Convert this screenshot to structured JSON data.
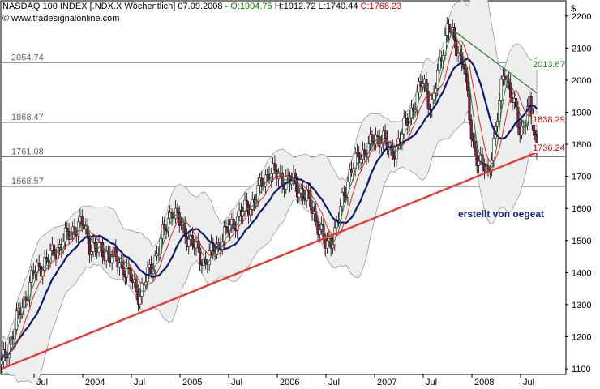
{
  "header": {
    "instrument": "NASDAQ 100 INDEX [.NDX.X  Wöchentlich]",
    "date": "07.09.2008",
    "open": "O:1904.75",
    "high": "H:1912.72",
    "low": "L:1740.44",
    "close": "C:1768.23"
  },
  "website": "© www.tradesignalonline.com",
  "credit": "erstellt von oegeat",
  "chart_data": {
    "type": "candlestick",
    "currency_symbol": "$",
    "ylim": [
      1085,
      2245
    ],
    "y_ticks": [
      1100,
      1200,
      1300,
      1400,
      1500,
      1600,
      1700,
      1800,
      1900,
      2000,
      2100,
      2200
    ],
    "x_ticks": [
      "Jul",
      "2004",
      "Jul",
      "2005",
      "Jul",
      "2006",
      "Jul",
      "2007",
      "Jul",
      "2008",
      "Jul"
    ],
    "horizontal_levels": [
      {
        "label": "2054.74",
        "value": 2054.74
      },
      {
        "label": "1868.47",
        "value": 1868.47
      },
      {
        "label": "1761.08",
        "value": 1761.08
      },
      {
        "label": "1668.57",
        "value": 1668.57
      }
    ],
    "annotations": [
      {
        "label": "2013.67",
        "value": 2013.67,
        "color": "#2e7d32"
      },
      {
        "label": "1838.29",
        "value": 1838.29,
        "color": "#cc0000"
      },
      {
        "label": "1736.24",
        "value": 1736.24,
        "color": "#cc0000"
      }
    ],
    "trendlines": [
      {
        "color": "#e53935",
        "from": {
          "x": "2003-03",
          "y": 1100
        },
        "to": {
          "x": "2008-09",
          "y": 1775
        }
      },
      {
        "color": "#2e7d32",
        "from": {
          "x": "2007-11",
          "y": 2150
        },
        "to": {
          "x": "2008-09",
          "y": 1960
        }
      }
    ],
    "price_path": [
      {
        "x": "2003-03",
        "y": 1110
      },
      {
        "x": "2003-05",
        "y": 1260
      },
      {
        "x": "2003-07",
        "y": 1400
      },
      {
        "x": "2003-09",
        "y": 1450
      },
      {
        "x": "2003-12",
        "y": 1540
      },
      {
        "x": "2004-01",
        "y": 1550
      },
      {
        "x": "2004-02",
        "y": 1480
      },
      {
        "x": "2004-04",
        "y": 1460
      },
      {
        "x": "2004-06",
        "y": 1420
      },
      {
        "x": "2004-08",
        "y": 1330
      },
      {
        "x": "2004-10",
        "y": 1450
      },
      {
        "x": "2004-12",
        "y": 1600
      },
      {
        "x": "2005-01",
        "y": 1550
      },
      {
        "x": "2005-04",
        "y": 1430
      },
      {
        "x": "2005-06",
        "y": 1500
      },
      {
        "x": "2005-08",
        "y": 1570
      },
      {
        "x": "2005-10",
        "y": 1620
      },
      {
        "x": "2005-12",
        "y": 1720
      },
      {
        "x": "2006-01",
        "y": 1700
      },
      {
        "x": "2006-03",
        "y": 1680
      },
      {
        "x": "2006-05",
        "y": 1620
      },
      {
        "x": "2006-07",
        "y": 1480
      },
      {
        "x": "2006-08",
        "y": 1520
      },
      {
        "x": "2006-10",
        "y": 1720
      },
      {
        "x": "2006-12",
        "y": 1790
      },
      {
        "x": "2007-02",
        "y": 1830
      },
      {
        "x": "2007-03",
        "y": 1760
      },
      {
        "x": "2007-05",
        "y": 1870
      },
      {
        "x": "2007-07",
        "y": 2000
      },
      {
        "x": "2007-08",
        "y": 1910
      },
      {
        "x": "2007-10",
        "y": 2180
      },
      {
        "x": "2007-11",
        "y": 2100
      },
      {
        "x": "2007-12",
        "y": 2060
      },
      {
        "x": "2008-01",
        "y": 1800
      },
      {
        "x": "2008-03",
        "y": 1700
      },
      {
        "x": "2008-05",
        "y": 2030
      },
      {
        "x": "2008-06",
        "y": 1950
      },
      {
        "x": "2008-07",
        "y": 1820
      },
      {
        "x": "2008-08",
        "y": 1940
      },
      {
        "x": "2008-09",
        "y": 1768
      }
    ],
    "grid": "off"
  }
}
